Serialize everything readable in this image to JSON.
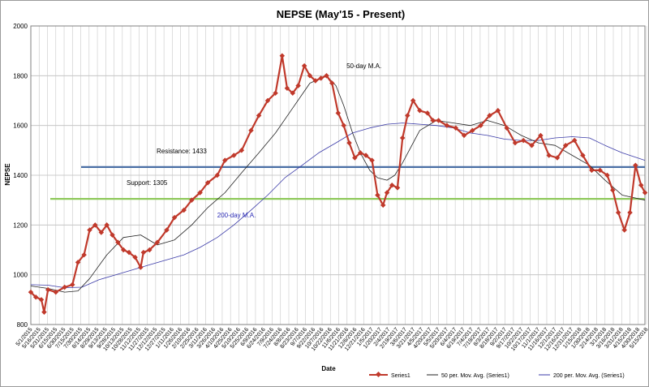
{
  "chart_data": {
    "type": "line",
    "title": "NEPSE (May'15 - Present)",
    "xlabel": "Date",
    "ylabel": "NEPSE",
    "ylim": [
      800,
      2000
    ],
    "yticks": [
      "800",
      "1000",
      "1200",
      "1400",
      "1600",
      "1800",
      "2000"
    ],
    "grid": true,
    "legend_position": "bottom",
    "x_date_range": [
      "5/1/2015",
      "5/12/2018"
    ],
    "x_tick_labels": [
      "5/1/2015",
      "5/16/2015",
      "5/31/2015",
      "6/15/2015",
      "6/30/2015",
      "7/15/2015",
      "7/30/2015",
      "8/14/2015",
      "8/29/2015",
      "9/13/2015",
      "9/28/2015",
      "10/13/2015",
      "10/28/2015",
      "11/12/2015",
      "11/27/2015",
      "12/12/2015",
      "12/27/2015",
      "1/11/2016",
      "1/26/2016",
      "2/10/2016",
      "2/25/2016",
      "3/11/2016",
      "3/26/2016",
      "4/10/2016",
      "4/25/2016",
      "5/10/2016",
      "5/25/2016",
      "6/9/2016",
      "6/24/2016",
      "7/9/2016",
      "7/24/2016",
      "8/8/2016",
      "8/23/2016",
      "9/7/2016",
      "9/22/2016",
      "10/7/2016",
      "10/22/2016",
      "11/6/2016",
      "11/21/2016",
      "12/6/2016",
      "12/21/2016",
      "1/5/2017",
      "1/20/2017",
      "2/4/2017",
      "2/19/2017",
      "3/6/2017",
      "3/21/2017",
      "4/5/2017",
      "4/20/2017",
      "5/5/2017",
      "5/20/2017",
      "6/4/2017",
      "6/19/2017",
      "7/4/2017",
      "7/19/2017",
      "8/3/2017",
      "8/18/2017",
      "9/2/2017",
      "9/17/2017",
      "10/2/2017",
      "10/17/2017",
      "11/1/2017",
      "11/16/2017",
      "12/1/2017",
      "12/16/2017",
      "12/31/2017",
      "1/15/2018",
      "1/30/2018",
      "2/14/2018",
      "3/1/2018",
      "3/16/2018",
      "3/31/2018",
      "4/15/2018",
      "4/30/2018",
      "5/15/2018"
    ],
    "series": [
      {
        "name": "Series1",
        "color": "#c0392b",
        "x": [
          "5/1/2015",
          "5/10/2015",
          "5/20/2015",
          "5/25/2015",
          "6/1/2015",
          "6/15/2015",
          "7/1/2015",
          "7/15/2015",
          "7/25/2015",
          "8/5/2015",
          "8/15/2015",
          "8/25/2015",
          "9/5/2015",
          "9/15/2015",
          "9/25/2015",
          "10/5/2015",
          "10/15/2015",
          "10/25/2015",
          "11/5/2015",
          "11/15/2015",
          "11/20/2015",
          "12/1/2015",
          "12/15/2015",
          "1/1/2016",
          "1/15/2016",
          "2/1/2016",
          "2/15/2016",
          "3/1/2016",
          "3/15/2016",
          "4/1/2016",
          "4/15/2016",
          "5/1/2016",
          "5/15/2016",
          "6/1/2016",
          "6/15/2016",
          "7/1/2016",
          "7/15/2016",
          "7/27/2016",
          "8/5/2016",
          "8/15/2016",
          "8/25/2016",
          "9/5/2016",
          "9/15/2016",
          "9/25/2016",
          "10/5/2016",
          "10/15/2016",
          "10/25/2016",
          "11/5/2016",
          "11/15/2016",
          "11/25/2016",
          "12/5/2016",
          "12/15/2016",
          "12/25/2016",
          "1/5/2017",
          "1/15/2017",
          "1/25/2017",
          "2/1/2017",
          "2/10/2017",
          "2/20/2017",
          "3/1/2017",
          "3/10/2017",
          "3/20/2017",
          "4/1/2017",
          "4/15/2017",
          "4/25/2017",
          "5/5/2017",
          "5/20/2017",
          "6/5/2017",
          "6/20/2017",
          "7/5/2017",
          "7/20/2017",
          "8/5/2017",
          "8/20/2017",
          "9/5/2017",
          "9/20/2017",
          "10/5/2017",
          "10/20/2017",
          "11/5/2017",
          "11/20/2017",
          "12/5/2017",
          "12/20/2017",
          "1/5/2018",
          "1/20/2018",
          "2/5/2018",
          "2/20/2018",
          "3/5/2018",
          "3/15/2018",
          "3/25/2018",
          "4/5/2018",
          "4/15/2018",
          "4/25/2018",
          "5/5/2018",
          "5/12/2018"
        ],
        "y": [
          930,
          910,
          900,
          850,
          940,
          930,
          950,
          960,
          1050,
          1080,
          1180,
          1200,
          1170,
          1200,
          1160,
          1130,
          1100,
          1090,
          1070,
          1030,
          1090,
          1100,
          1130,
          1180,
          1230,
          1260,
          1300,
          1330,
          1370,
          1400,
          1460,
          1480,
          1500,
          1580,
          1640,
          1700,
          1730,
          1880,
          1750,
          1730,
          1760,
          1840,
          1800,
          1780,
          1790,
          1800,
          1770,
          1650,
          1600,
          1530,
          1470,
          1490,
          1480,
          1460,
          1320,
          1280,
          1330,
          1360,
          1350,
          1550,
          1640,
          1700,
          1660,
          1650,
          1620,
          1620,
          1600,
          1590,
          1560,
          1580,
          1600,
          1640,
          1660,
          1590,
          1530,
          1540,
          1520,
          1560,
          1480,
          1470,
          1520,
          1540,
          1480,
          1420,
          1420,
          1400,
          1340,
          1250,
          1180,
          1250,
          1440,
          1360,
          1330
        ]
      },
      {
        "name": "50 per. Mov. Avg. (Series1)",
        "color": "#222222",
        "x": [
          "5/1/2015",
          "6/1/2015",
          "7/1/2015",
          "7/25/2015",
          "8/15/2015",
          "9/15/2015",
          "10/15/2015",
          "11/15/2015",
          "12/15/2015",
          "1/15/2016",
          "2/15/2016",
          "3/15/2016",
          "4/15/2016",
          "5/15/2016",
          "6/15/2016",
          "7/15/2016",
          "8/15/2016",
          "9/15/2016",
          "10/15/2016",
          "11/1/2016",
          "11/15/2016",
          "12/1/2016",
          "12/15/2016",
          "1/1/2017",
          "1/15/2017",
          "2/1/2017",
          "2/15/2017",
          "3/1/2017",
          "4/1/2017",
          "5/1/2017",
          "6/1/2017",
          "7/1/2017",
          "8/1/2017",
          "9/1/2017",
          "10/1/2017",
          "11/1/2017",
          "12/1/2017",
          "1/1/2018",
          "2/1/2018",
          "3/1/2018",
          "4/1/2018",
          "5/12/2018"
        ],
        "y": [
          955,
          945,
          930,
          935,
          985,
          1080,
          1150,
          1160,
          1120,
          1140,
          1200,
          1270,
          1330,
          1410,
          1490,
          1570,
          1670,
          1770,
          1800,
          1760,
          1680,
          1570,
          1490,
          1420,
          1390,
          1380,
          1400,
          1450,
          1580,
          1620,
          1610,
          1600,
          1620,
          1600,
          1560,
          1530,
          1520,
          1480,
          1440,
          1380,
          1320,
          1300
        ]
      },
      {
        "name": "200 per. Mov. Avg. (Series1)",
        "color": "#3a3aa8",
        "x": [
          "5/1/2015",
          "6/1/2015",
          "7/1/2015",
          "8/1/2015",
          "9/1/2015",
          "10/1/2015",
          "11/1/2015",
          "12/1/2015",
          "1/1/2016",
          "2/1/2016",
          "3/1/2016",
          "4/1/2016",
          "5/1/2016",
          "6/1/2016",
          "7/1/2016",
          "8/1/2016",
          "9/1/2016",
          "10/1/2016",
          "11/1/2016",
          "12/1/2016",
          "1/1/2017",
          "2/1/2017",
          "3/1/2017",
          "4/1/2017",
          "5/1/2017",
          "6/1/2017",
          "7/1/2017",
          "8/1/2017",
          "9/1/2017",
          "10/1/2017",
          "11/1/2017",
          "12/1/2017",
          "1/1/2018",
          "2/1/2018",
          "3/1/2018",
          "4/1/2018",
          "5/12/2018"
        ],
        "y": [
          960,
          958,
          948,
          950,
          980,
          1000,
          1020,
          1040,
          1060,
          1080,
          1110,
          1150,
          1200,
          1260,
          1320,
          1390,
          1440,
          1490,
          1530,
          1570,
          1590,
          1605,
          1610,
          1605,
          1600,
          1590,
          1570,
          1560,
          1545,
          1540,
          1540,
          1550,
          1555,
          1550,
          1520,
          1490,
          1460
        ]
      }
    ],
    "reference_lines": [
      {
        "name": "Resistance",
        "value": 1433,
        "label": "Resistance: 1433",
        "color": "#4a6fa5"
      },
      {
        "name": "Support",
        "value": 1305,
        "label": "Support: 1305",
        "color": "#8fc95c"
      }
    ],
    "annotations": [
      {
        "text": "50-day M.A.",
        "x": "11/20/2016",
        "y": 1840
      },
      {
        "text": "200-day M.A.",
        "x": "4/1/2016",
        "y": 1240
      }
    ]
  }
}
